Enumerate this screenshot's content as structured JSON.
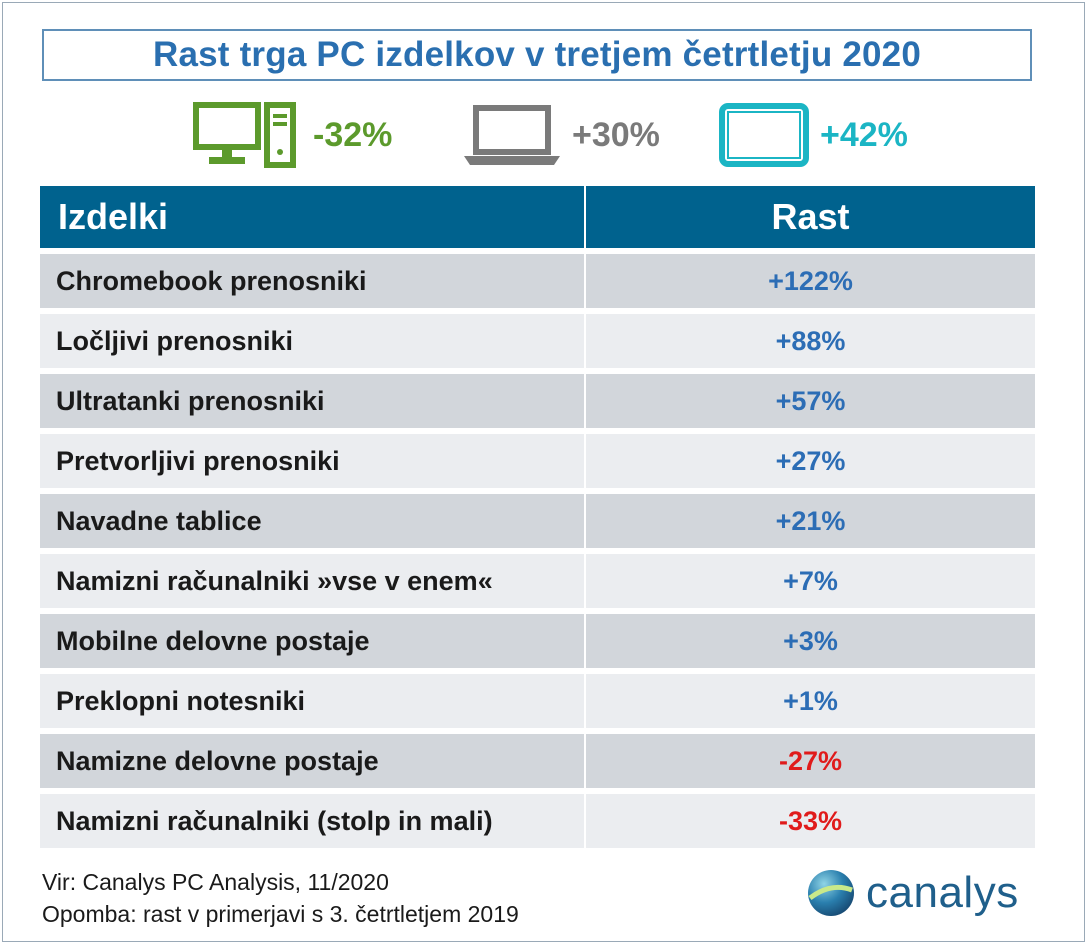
{
  "title": "Rast trga PC izdelkov v tretjem četrtletju 2020",
  "summary": [
    {
      "icon": "desktop-icon",
      "value": "-32%",
      "color": "#5c9a2c"
    },
    {
      "icon": "laptop-icon",
      "value": "+30%",
      "color": "#7a7a7a"
    },
    {
      "icon": "tablet-icon",
      "value": "+42%",
      "color": "#1bb5c4"
    }
  ],
  "table": {
    "headers": [
      "Izdelki",
      "Rast"
    ],
    "positive_color": "#2c6db5",
    "negative_color": "#e01b1b"
  },
  "chart_data": {
    "type": "table",
    "title": "Rast trga PC izdelkov v tretjem četrtletju 2020",
    "columns": [
      "Izdelki",
      "Rast"
    ],
    "rows": [
      {
        "label": "Chromebook prenosniki",
        "value": 122,
        "display": "+122%"
      },
      {
        "label": "Ločljivi prenosniki",
        "value": 88,
        "display": "+88%"
      },
      {
        "label": "Ultratanki prenosniki",
        "value": 57,
        "display": "+57%"
      },
      {
        "label": "Pretvorljivi prenosniki",
        "value": 27,
        "display": "+27%"
      },
      {
        "label": "Navadne tablice",
        "value": 21,
        "display": "+21%"
      },
      {
        "label": "Namizni računalniki »vse v enem«",
        "value": 7,
        "display": "+7%"
      },
      {
        "label": "Mobilne delovne postaje",
        "value": 3,
        "display": "+3%"
      },
      {
        "label": "Preklopni notesniki",
        "value": 1,
        "display": "+1%"
      },
      {
        "label": "Namizne delovne postaje",
        "value": -27,
        "display": "-27%"
      },
      {
        "label": "Namizni računalniki (stolp in mali)",
        "value": -33,
        "display": "-33%"
      }
    ]
  },
  "footer": {
    "source": "Vir: Canalys PC Analysis, 11/2020",
    "note": "Opomba: rast v primerjavi s 3. četrtletjem 2019"
  },
  "logo": {
    "text": "canalys",
    "icon": "canalys-globe-icon"
  }
}
